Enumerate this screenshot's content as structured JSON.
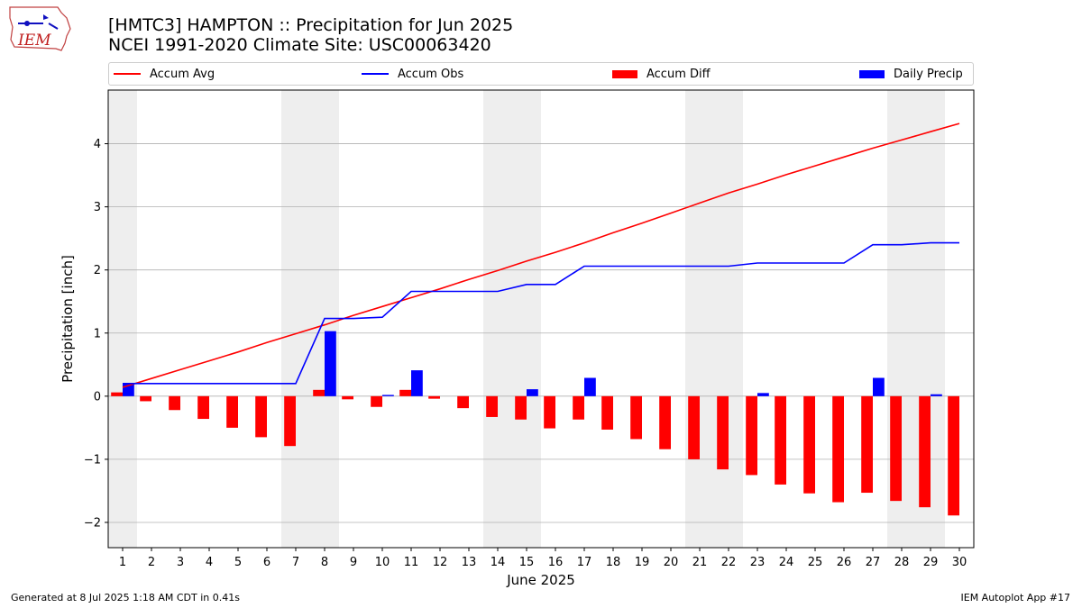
{
  "header": {
    "title_line1": "[HMTC3] HAMPTON :: Precipitation for Jun 2025",
    "title_line2": "NCEI 1991-2020 Climate Site: USC00063420",
    "logo_text": "IEM"
  },
  "footer": {
    "left": "Generated at 8 Jul 2025 1:18 AM CDT in 0.41s",
    "right": "IEM Autoplot App #17"
  },
  "colors": {
    "accum_avg": "#ff0000",
    "accum_obs": "#0000ff",
    "accum_diff": "#ff0000",
    "daily_precip": "#0000ff",
    "weekend_shade": "#eeeeee",
    "grid": "#b0b0b0"
  },
  "chart_data": {
    "type": "bar",
    "xlabel": "June 2025",
    "ylabel": "Precipitation [inch]",
    "xlim": [
      0.5,
      30.5
    ],
    "ylim": [
      -2.4,
      4.85
    ],
    "yticks": [
      -2,
      -1,
      0,
      1,
      2,
      3,
      4
    ],
    "ytick_labels": [
      "−2",
      "−1",
      "0",
      "1",
      "2",
      "3",
      "4"
    ],
    "grid": "horizontal",
    "legend_position": "top",
    "categories": [
      "1",
      "2",
      "3",
      "4",
      "5",
      "6",
      "7",
      "8",
      "9",
      "10",
      "11",
      "12",
      "13",
      "14",
      "15",
      "16",
      "17",
      "18",
      "19",
      "20",
      "21",
      "22",
      "23",
      "24",
      "25",
      "26",
      "27",
      "28",
      "29",
      "30"
    ],
    "weekend_days": [
      1,
      7,
      8,
      14,
      15,
      21,
      22,
      28,
      29
    ],
    "legend": [
      "Accum Avg",
      "Accum Obs",
      "Accum Diff",
      "Daily Precip"
    ],
    "series": [
      {
        "name": "Accum Avg",
        "kind": "line",
        "values": [
          0.14,
          0.28,
          0.42,
          0.56,
          0.7,
          0.85,
          0.99,
          1.13,
          1.28,
          1.42,
          1.56,
          1.7,
          1.85,
          1.99,
          2.14,
          2.28,
          2.43,
          2.59,
          2.74,
          2.9,
          3.06,
          3.22,
          3.36,
          3.51,
          3.65,
          3.79,
          3.93,
          4.06,
          4.19,
          4.32
        ]
      },
      {
        "name": "Accum Obs",
        "kind": "line",
        "values": [
          0.2,
          0.2,
          0.2,
          0.2,
          0.2,
          0.2,
          0.2,
          1.23,
          1.23,
          1.25,
          1.66,
          1.66,
          1.66,
          1.66,
          1.77,
          1.77,
          2.06,
          2.06,
          2.06,
          2.06,
          2.06,
          2.06,
          2.11,
          2.11,
          2.11,
          2.11,
          2.4,
          2.4,
          2.43,
          2.43
        ]
      },
      {
        "name": "Accum Diff",
        "kind": "bar",
        "values": [
          0.06,
          -0.08,
          -0.22,
          -0.36,
          -0.5,
          -0.65,
          -0.79,
          0.1,
          -0.05,
          -0.17,
          0.1,
          -0.04,
          -0.19,
          -0.33,
          -0.37,
          -0.51,
          -0.37,
          -0.53,
          -0.68,
          -0.84,
          -1.0,
          -1.16,
          -1.25,
          -1.4,
          -1.54,
          -1.68,
          -1.53,
          -1.66,
          -1.76,
          -1.89
        ]
      },
      {
        "name": "Daily Precip",
        "kind": "bar",
        "values": [
          0.2,
          0,
          0,
          0,
          0,
          0,
          0,
          1.03,
          0,
          0.02,
          0.41,
          0,
          0,
          0,
          0.11,
          0,
          0.29,
          0,
          0,
          0,
          0,
          0,
          0.05,
          0,
          0,
          0,
          0.29,
          0,
          0.03,
          0
        ]
      }
    ]
  }
}
